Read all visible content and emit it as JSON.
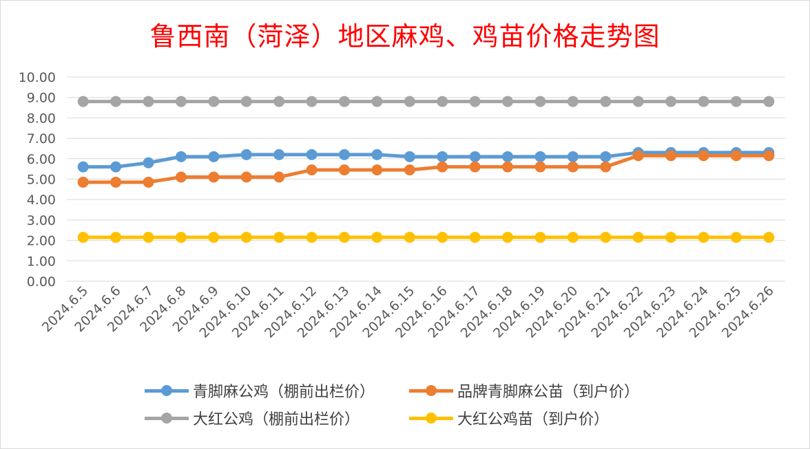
{
  "chart_data": {
    "type": "line",
    "title": "鲁西南（菏泽）地区麻鸡、鸡苗价格走势图",
    "xlabel": "",
    "ylabel": "",
    "categories": [
      "2024.6.5",
      "2024.6.6",
      "2024.6.7",
      "2024.6.8",
      "2024.6.9",
      "2024.6.10",
      "2024.6.11",
      "2024.6.12",
      "2024.6.13",
      "2024.6.14",
      "2024.6.15",
      "2024.6.16",
      "2024.6.17",
      "2024.6.18",
      "2024.6.19",
      "2024.6.20",
      "2024.6.21",
      "2024.6.22",
      "2024.6.23",
      "2024.6.24",
      "2024.6.25",
      "2024.6.26"
    ],
    "ylim": [
      0,
      10
    ],
    "yticks": [
      "0.00",
      "1.00",
      "2.00",
      "3.00",
      "4.00",
      "5.00",
      "6.00",
      "7.00",
      "8.00",
      "9.00",
      "10.00"
    ],
    "grid": true,
    "legend_position": "bottom",
    "series": [
      {
        "name": "青脚麻公鸡（棚前出栏价）",
        "color": "#5b9bd5",
        "values": [
          5.6,
          5.6,
          5.8,
          6.1,
          6.1,
          6.2,
          6.2,
          6.2,
          6.2,
          6.2,
          6.1,
          6.1,
          6.1,
          6.1,
          6.1,
          6.1,
          6.1,
          6.3,
          6.3,
          6.3,
          6.3,
          6.3
        ]
      },
      {
        "name": "品牌青脚麻公苗（到户价）",
        "color": "#ed7d31",
        "values": [
          4.85,
          4.85,
          4.85,
          5.1,
          5.1,
          5.1,
          5.1,
          5.45,
          5.45,
          5.45,
          5.45,
          5.6,
          5.6,
          5.6,
          5.6,
          5.6,
          5.6,
          6.15,
          6.15,
          6.15,
          6.15,
          6.15
        ]
      },
      {
        "name": "大红公鸡（棚前出栏价）",
        "color": "#a5a5a5",
        "values": [
          8.8,
          8.8,
          8.8,
          8.8,
          8.8,
          8.8,
          8.8,
          8.8,
          8.8,
          8.8,
          8.8,
          8.8,
          8.8,
          8.8,
          8.8,
          8.8,
          8.8,
          8.8,
          8.8,
          8.8,
          8.8,
          8.8
        ]
      },
      {
        "name": "大红公鸡苗（到户价）",
        "color": "#ffc000",
        "values": [
          2.15,
          2.15,
          2.15,
          2.15,
          2.15,
          2.15,
          2.15,
          2.15,
          2.15,
          2.15,
          2.15,
          2.15,
          2.15,
          2.15,
          2.15,
          2.15,
          2.15,
          2.15,
          2.15,
          2.15,
          2.15,
          2.15
        ]
      }
    ]
  }
}
